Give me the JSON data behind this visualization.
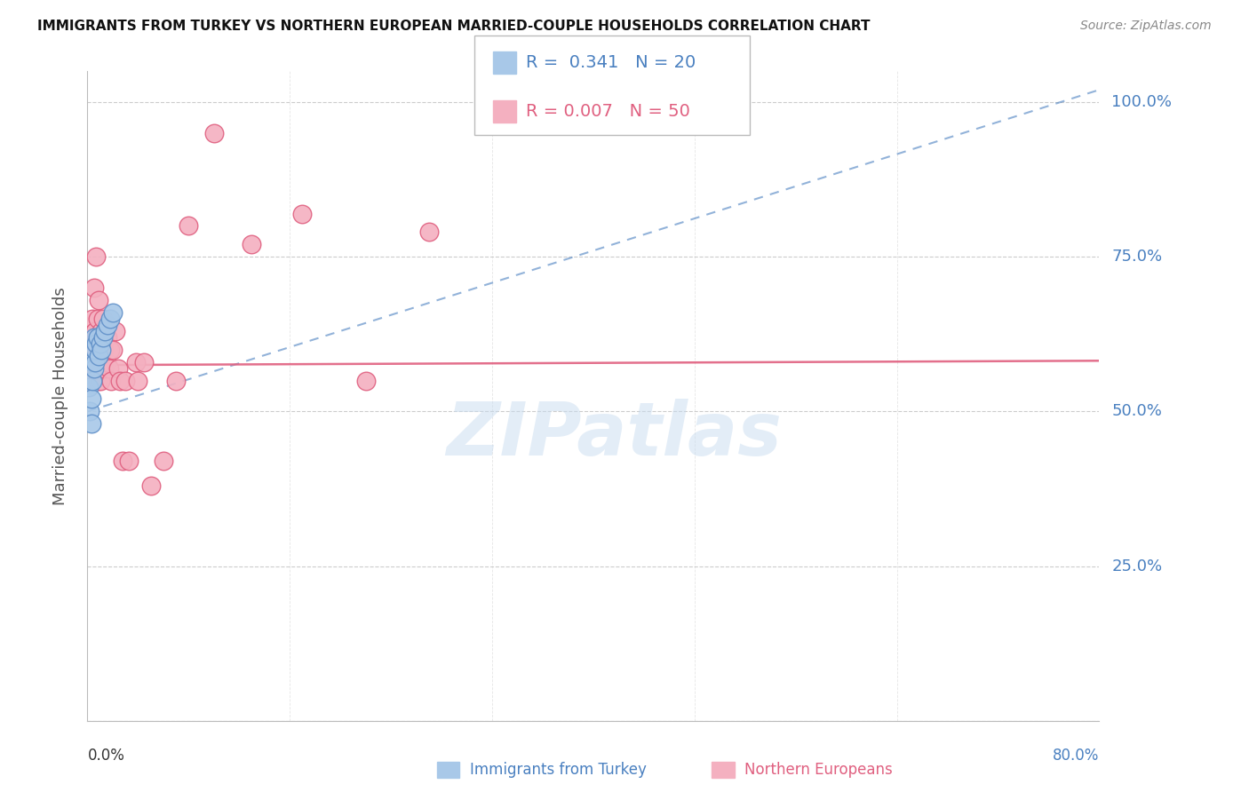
{
  "title": "IMMIGRANTS FROM TURKEY VS NORTHERN EUROPEAN MARRIED-COUPLE HOUSEHOLDS CORRELATION CHART",
  "source": "Source: ZipAtlas.com",
  "ylabel": "Married-couple Households",
  "watermark": "ZIPatlas",
  "blue_R": 0.341,
  "blue_N": 20,
  "pink_R": 0.007,
  "pink_N": 50,
  "blue_color": "#a8c8e8",
  "pink_color": "#f4b0c0",
  "blue_edge_color": "#6090c8",
  "pink_edge_color": "#e06080",
  "blue_line_color": "#4a80c0",
  "pink_line_color": "#e06080",
  "legend_line1": "R =  0.341   N = 20",
  "legend_line2": "R = 0.007   N = 50",
  "grid_color": "#cccccc",
  "right_label_color": "#4a80c0",
  "blue_x": [
    0.001,
    0.002,
    0.003,
    0.003,
    0.004,
    0.004,
    0.005,
    0.005,
    0.006,
    0.006,
    0.007,
    0.008,
    0.009,
    0.01,
    0.011,
    0.012,
    0.014,
    0.016,
    0.018,
    0.02
  ],
  "blue_y": [
    0.54,
    0.5,
    0.48,
    0.52,
    0.55,
    0.58,
    0.57,
    0.62,
    0.58,
    0.6,
    0.61,
    0.62,
    0.59,
    0.61,
    0.6,
    0.62,
    0.63,
    0.64,
    0.65,
    0.66
  ],
  "pink_x": [
    0.001,
    0.002,
    0.002,
    0.003,
    0.003,
    0.004,
    0.004,
    0.005,
    0.005,
    0.005,
    0.006,
    0.006,
    0.007,
    0.007,
    0.008,
    0.008,
    0.009,
    0.009,
    0.01,
    0.01,
    0.011,
    0.011,
    0.012,
    0.013,
    0.013,
    0.014,
    0.015,
    0.016,
    0.017,
    0.018,
    0.019,
    0.02,
    0.022,
    0.024,
    0.026,
    0.028,
    0.03,
    0.033,
    0.038,
    0.04,
    0.045,
    0.05,
    0.06,
    0.07,
    0.08,
    0.1,
    0.13,
    0.17,
    0.22,
    0.27
  ],
  "pink_y": [
    0.55,
    0.6,
    0.57,
    0.62,
    0.56,
    0.65,
    0.58,
    0.7,
    0.6,
    0.56,
    0.63,
    0.57,
    0.75,
    0.62,
    0.65,
    0.55,
    0.68,
    0.57,
    0.6,
    0.55,
    0.63,
    0.57,
    0.65,
    0.6,
    0.57,
    0.63,
    0.58,
    0.62,
    0.57,
    0.6,
    0.55,
    0.6,
    0.63,
    0.57,
    0.55,
    0.42,
    0.55,
    0.42,
    0.58,
    0.55,
    0.58,
    0.38,
    0.42,
    0.55,
    0.8,
    0.95,
    0.77,
    0.82,
    0.55,
    0.79
  ],
  "xlim": [
    0.0,
    0.8
  ],
  "ylim": [
    0.0,
    1.05
  ],
  "yticks": [
    0.0,
    0.25,
    0.5,
    0.75,
    1.0
  ],
  "ytick_labels_right": [
    "",
    "25.0%",
    "50.0%",
    "75.0%",
    "100.0%"
  ],
  "blue_trend_x": [
    0.0,
    0.8
  ],
  "blue_trend_y0": 0.5,
  "blue_trend_y1": 1.02,
  "pink_trend_x": [
    0.0,
    0.8
  ],
  "pink_trend_y0": 0.575,
  "pink_trend_y1": 0.582
}
